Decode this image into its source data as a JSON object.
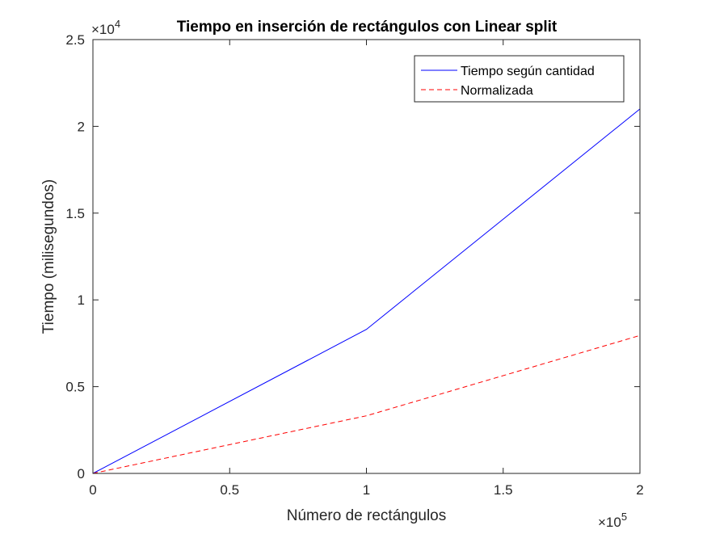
{
  "chart_data": {
    "type": "line",
    "title": "Tiempo en inserción de rectángulos con Linear split",
    "xlabel": "Número de rectángulos",
    "ylabel": "Tiempo (milisegundos)",
    "xlim": [
      0,
      200000
    ],
    "ylim": [
      0,
      25000
    ],
    "x_ticks": [
      0,
      50000,
      100000,
      150000,
      200000
    ],
    "x_tick_labels": [
      "0",
      "0.5",
      "1",
      "1.5",
      "2"
    ],
    "y_ticks": [
      0,
      5000,
      10000,
      15000,
      20000,
      25000
    ],
    "y_tick_labels": [
      "0",
      "0.5",
      "1",
      "1.5",
      "2",
      "2.5"
    ],
    "x_exponent": {
      "base": "×10",
      "power": "5"
    },
    "y_exponent": {
      "base": "×10",
      "power": "4"
    },
    "grid": false,
    "box": true,
    "legend_position": "top-right",
    "series": [
      {
        "name": "Tiempo según cantidad",
        "color": "#0000ff",
        "style": "solid",
        "x": [
          0,
          100000,
          200000
        ],
        "y": [
          0,
          8300,
          21000
        ]
      },
      {
        "name": "Normalizada",
        "color": "#ff0000",
        "style": "dashed",
        "x": [
          0,
          100000,
          200000
        ],
        "y": [
          0,
          3320,
          7950
        ]
      }
    ]
  }
}
